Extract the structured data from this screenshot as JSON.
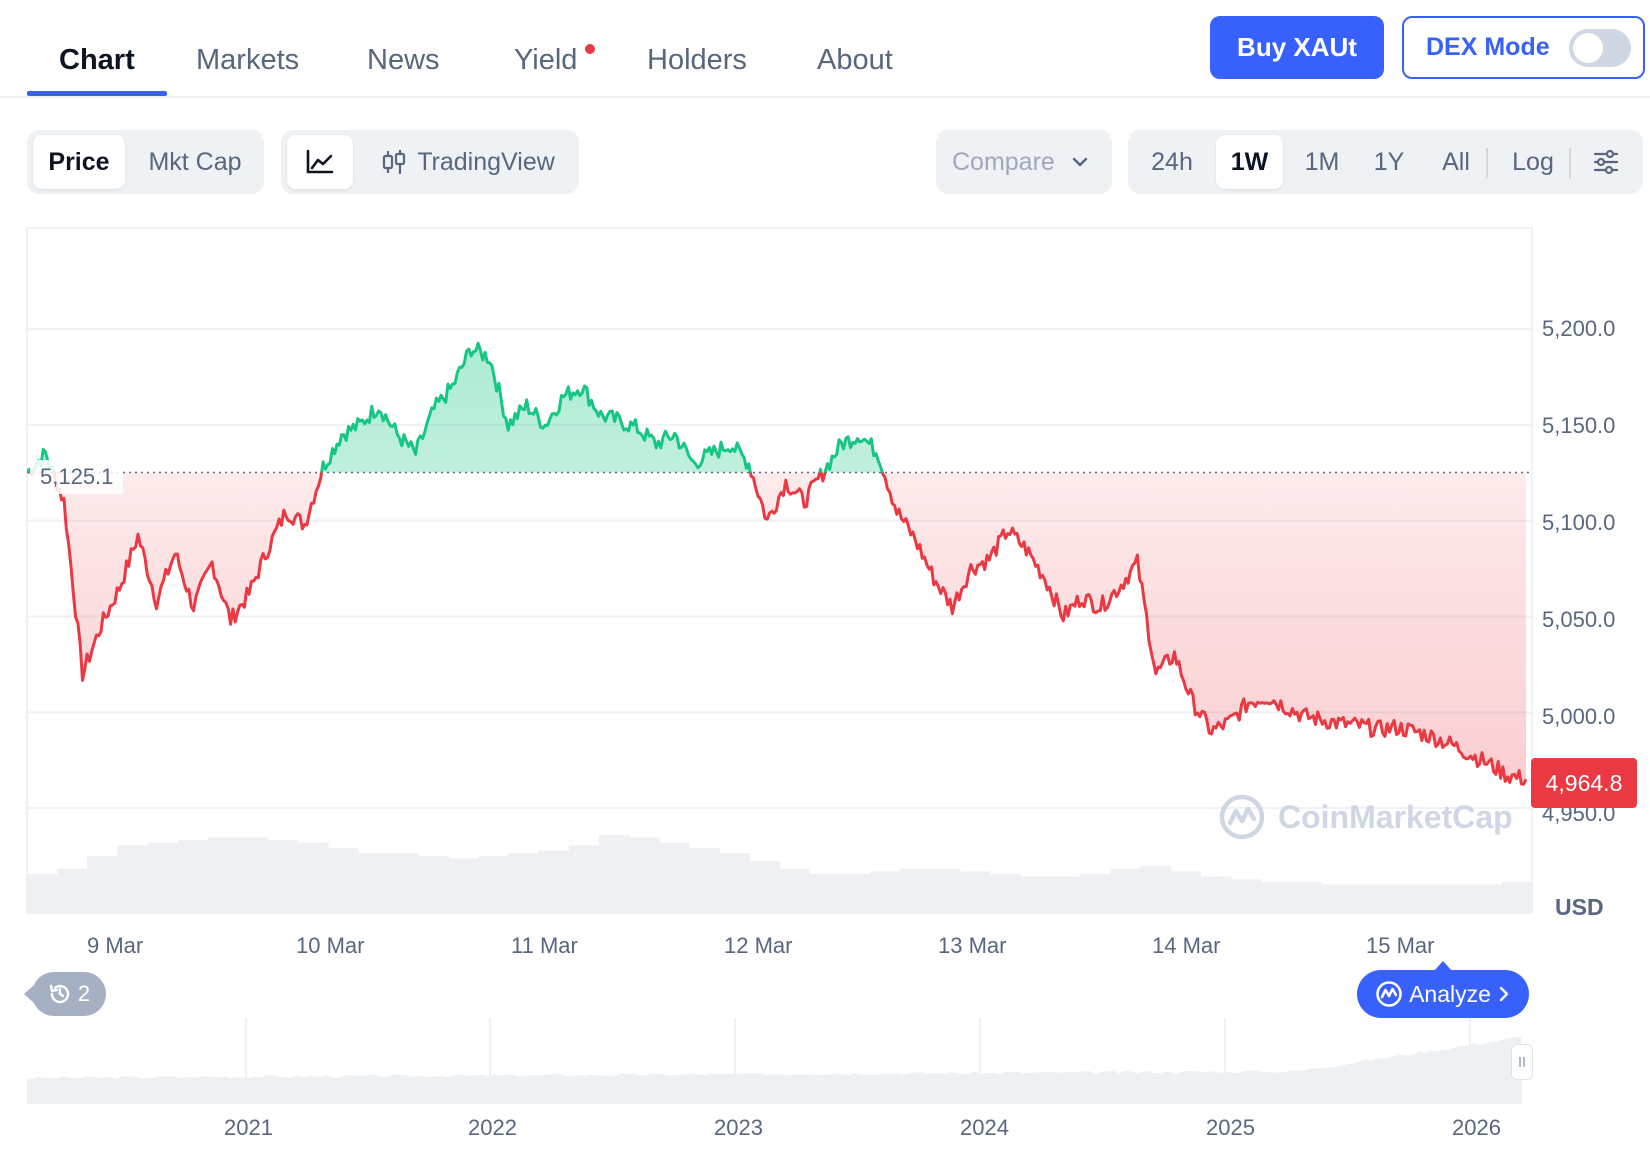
{
  "nav": {
    "tabs": [
      {
        "label": "Chart",
        "active": true
      },
      {
        "label": "Markets"
      },
      {
        "label": "News"
      },
      {
        "label": "Yield",
        "badge": true
      },
      {
        "label": "Holders"
      },
      {
        "label": "About"
      }
    ],
    "buy_label": "Buy XAUt",
    "dex_label": "DEX Mode"
  },
  "controls": {
    "metric": [
      "Price",
      "Mkt Cap"
    ],
    "metric_active": "Price",
    "chart_type": [
      "line-chart-icon",
      "TradingView"
    ],
    "compare_label": "Compare",
    "ranges": [
      "24h",
      "1W",
      "1M",
      "1Y",
      "All"
    ],
    "range_active": "1W",
    "log_label": "Log"
  },
  "colors": {
    "accent": "#3861fb",
    "up": "#16c784",
    "down": "#ea3943"
  },
  "chart_data": {
    "type": "line",
    "unit": "USD",
    "y_ticks": [
      "5,200.0",
      "5,150.0",
      "5,100.0",
      "5,050.0",
      "5,000.0",
      "4,950.0"
    ],
    "ylim": [
      4950,
      5200
    ],
    "x_ticks": [
      "9 Mar",
      "10 Mar",
      "11 Mar",
      "12 Mar",
      "13 Mar",
      "14 Mar",
      "15 Mar"
    ],
    "baseline": 5125.1,
    "baseline_label": "5,125.1",
    "current_price_label": "4,964.8",
    "series": [
      {
        "values": [
          5125,
          5135,
          5110,
          5020,
          5045,
          5065,
          5092,
          5058,
          5083,
          5055,
          5078,
          5048,
          5062,
          5085,
          5105,
          5098,
          5128,
          5145,
          5150,
          5160,
          5145,
          5135,
          5158,
          5170,
          5190,
          5185,
          5150,
          5160,
          5150,
          5165,
          5170,
          5155,
          5152,
          5148,
          5140,
          5145,
          5130,
          5135,
          5140,
          5130,
          5100,
          5120,
          5110,
          5125,
          5140,
          5145,
          5135,
          5105,
          5090,
          5070,
          5055,
          5075,
          5080,
          5095,
          5085,
          5070,
          5050,
          5060,
          5055,
          5065,
          5078,
          5020,
          5030,
          5005,
          4990,
          4995,
          5005,
          5008,
          5003,
          4998,
          4996,
          4994,
          4993,
          4991,
          4992,
          4990,
          4987,
          4983,
          4978,
          4973,
          4967,
          4965
        ]
      }
    ],
    "volume_profile": [
      30,
      34,
      44,
      52,
      54,
      56,
      58,
      58,
      56,
      54,
      50,
      46,
      46,
      44,
      42,
      44,
      46,
      48,
      52,
      60,
      58,
      54,
      50,
      46,
      40,
      34,
      30,
      30,
      32,
      34,
      34,
      32,
      30,
      28,
      28,
      30,
      34,
      36,
      32,
      28,
      26,
      24,
      24,
      22,
      22,
      22,
      22,
      22,
      22,
      24
    ],
    "overview": {
      "years": [
        "2021",
        "2022",
        "2023",
        "2024",
        "2025",
        "2026"
      ]
    }
  },
  "watermark": "CoinMarketCap",
  "history_count": "2",
  "analyze_label": "Analyze"
}
